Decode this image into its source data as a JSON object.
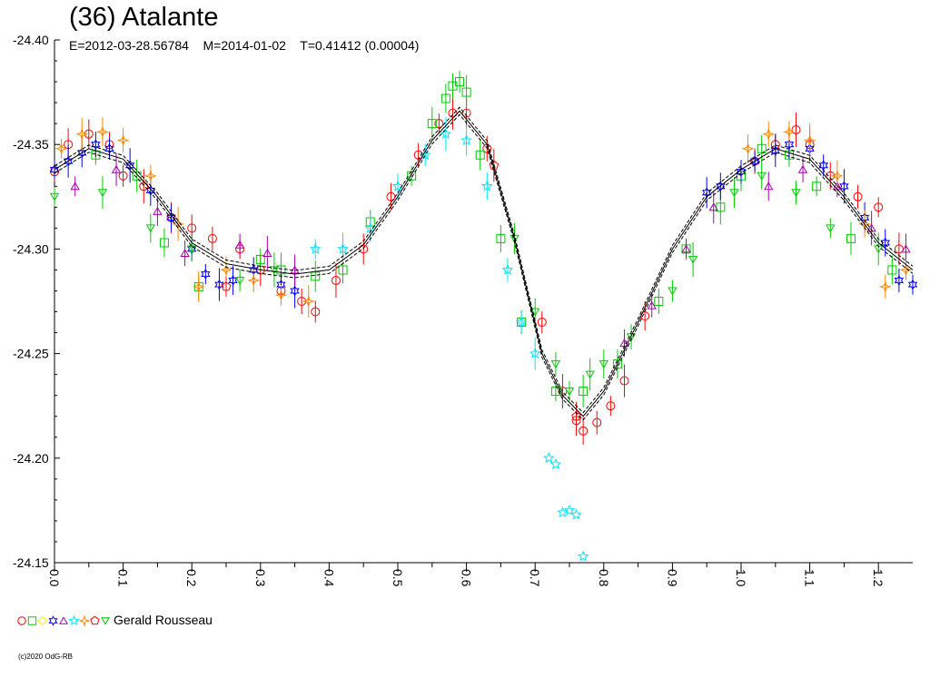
{
  "chart_data": {
    "type": "scatter",
    "title": "(36) Atalante",
    "subtitle": "E=2012-03-28.56784    M=2014-01-02    T=0.41412 (0.00004)",
    "xlabel": "",
    "ylabel": "",
    "xlim": [
      0.0,
      1.25
    ],
    "ylim": [
      -24.4,
      -24.15
    ],
    "y_inverted": true,
    "x_ticks": [
      "0.0",
      "0.1",
      "0.2",
      "0.3",
      "0.4",
      "0.5",
      "0.6",
      "0.7",
      "0.8",
      "0.9",
      "1.0",
      "1.1",
      "1.2"
    ],
    "y_ticks": [
      "-24.40",
      "-24.35",
      "-24.30",
      "-24.25",
      "-24.20",
      "-24.15"
    ],
    "grid": false,
    "legend_position": "bottom-left",
    "legend": {
      "label": "Gerald Rousseau",
      "markers": [
        {
          "shape": "circle",
          "color": "#ff0000"
        },
        {
          "shape": "square",
          "color": "#00cc00"
        },
        {
          "shape": "diamond",
          "color": "#ffee00"
        },
        {
          "shape": "hexstar",
          "color": "#0000ff"
        },
        {
          "shape": "triangle-up",
          "color": "#aa00aa"
        },
        {
          "shape": "star",
          "color": "#00e6ff"
        },
        {
          "shape": "cross",
          "color": "#ff8800"
        },
        {
          "shape": "pentagon",
          "color": "#ff0000"
        },
        {
          "shape": "triangle-down",
          "color": "#00cc00"
        }
      ]
    },
    "fit_curve": {
      "description_points_phase": [
        0.0,
        0.05,
        0.1,
        0.15,
        0.2,
        0.25,
        0.3,
        0.35,
        0.4,
        0.45,
        0.5,
        0.55,
        0.59,
        0.63,
        0.67,
        0.71,
        0.74,
        0.77,
        0.8,
        0.85,
        0.9,
        0.95,
        1.0,
        1.05,
        1.1,
        1.15,
        1.2,
        1.25
      ],
      "mag": [
        -24.338,
        -24.348,
        -24.343,
        -24.325,
        -24.303,
        -24.293,
        -24.29,
        -24.288,
        -24.29,
        -24.302,
        -24.325,
        -24.352,
        -24.366,
        -24.35,
        -24.305,
        -24.25,
        -24.23,
        -24.22,
        -24.232,
        -24.265,
        -24.3,
        -24.325,
        -24.338,
        -24.348,
        -24.343,
        -24.325,
        -24.303,
        -24.29
      ]
    },
    "series": [
      {
        "marker": "circle",
        "color": "#ff0000",
        "x": [
          0.0,
          0.02,
          0.05,
          0.08,
          0.1,
          0.13,
          0.17,
          0.2,
          0.23,
          0.27,
          0.3,
          0.33,
          0.36,
          0.38,
          0.41,
          0.45,
          0.49,
          0.53,
          0.56,
          0.58,
          0.6,
          0.63,
          0.71,
          0.74,
          0.76,
          0.77,
          0.79,
          0.81,
          0.83,
          0.86,
          1.02,
          1.05,
          1.08,
          1.1,
          1.13,
          1.17,
          1.2,
          1.23
        ],
        "y": [
          -24.337,
          -24.35,
          -24.355,
          -24.35,
          -24.335,
          -24.33,
          -24.315,
          -24.31,
          -24.305,
          -24.3,
          -24.29,
          -24.28,
          -24.275,
          -24.27,
          -24.285,
          -24.3,
          -24.325,
          -24.345,
          -24.36,
          -24.365,
          -24.365,
          -24.348,
          -24.265,
          -24.232,
          -24.218,
          -24.213,
          -24.217,
          -24.225,
          -24.237,
          -24.268,
          -24.342,
          -24.35,
          -24.357,
          -24.35,
          -24.335,
          -24.325,
          -24.32,
          -24.3
        ]
      },
      {
        "marker": "square",
        "color": "#00cc00",
        "x": [
          0.06,
          0.12,
          0.16,
          0.21,
          0.3,
          0.33,
          0.38,
          0.42,
          0.46,
          0.52,
          0.55,
          0.57,
          0.58,
          0.59,
          0.6,
          0.62,
          0.65,
          0.68,
          0.73,
          0.77,
          0.82,
          0.88,
          0.92,
          0.97,
          1.0,
          1.03,
          1.07,
          1.11,
          1.16,
          1.22
        ],
        "y": [
          -24.345,
          -24.335,
          -24.303,
          -24.282,
          -24.295,
          -24.29,
          -24.287,
          -24.29,
          -24.313,
          -24.335,
          -24.36,
          -24.372,
          -24.378,
          -24.38,
          -24.375,
          -24.345,
          -24.305,
          -24.265,
          -24.232,
          -24.232,
          -24.245,
          -24.275,
          -24.3,
          -24.32,
          -24.335,
          -24.348,
          -24.345,
          -24.33,
          -24.305,
          -24.29
        ]
      },
      {
        "marker": "hexstar",
        "color": "#0000ff",
        "x": [
          0.0,
          0.02,
          0.04,
          0.06,
          0.08,
          0.11,
          0.14,
          0.17,
          0.2,
          0.22,
          0.24,
          0.26,
          0.29,
          0.33,
          0.35,
          0.95,
          0.97,
          1.0,
          1.02,
          1.05,
          1.07,
          1.1,
          1.12,
          1.15,
          1.18,
          1.21,
          1.23,
          1.25
        ],
        "y": [
          -24.338,
          -24.342,
          -24.346,
          -24.35,
          -24.348,
          -24.34,
          -24.328,
          -24.315,
          -24.3,
          -24.288,
          -24.283,
          -24.285,
          -24.29,
          -24.283,
          -24.28,
          -24.327,
          -24.33,
          -24.337,
          -24.342,
          -24.347,
          -24.35,
          -24.348,
          -24.34,
          -24.33,
          -24.315,
          -24.303,
          -24.285,
          -24.283
        ]
      },
      {
        "marker": "triangle-up",
        "color": "#aa00aa",
        "x": [
          0.03,
          0.09,
          0.15,
          0.19,
          0.27,
          0.31,
          0.35,
          0.83,
          0.87,
          0.92,
          0.96,
          1.04,
          1.09,
          1.14,
          1.19,
          1.24
        ],
        "y": [
          -24.33,
          -24.338,
          -24.318,
          -24.298,
          -24.302,
          -24.298,
          -24.29,
          -24.255,
          -24.273,
          -24.3,
          -24.32,
          -24.33,
          -24.338,
          -24.33,
          -24.31,
          -24.3
        ]
      },
      {
        "marker": "star",
        "color": "#00e6ff",
        "x": [
          0.38,
          0.42,
          0.46,
          0.5,
          0.54,
          0.57,
          0.6,
          0.63,
          0.66,
          0.68,
          0.7,
          0.72,
          0.73,
          0.74,
          0.75,
          0.76,
          0.77
        ],
        "y": [
          -24.3,
          -24.3,
          -24.31,
          -24.33,
          -24.345,
          -24.355,
          -24.352,
          -24.33,
          -24.29,
          -24.265,
          -24.25,
          -24.2,
          -24.197,
          -24.174,
          -24.175,
          -24.173,
          -24.153
        ]
      },
      {
        "marker": "cross",
        "color": "#ff8800",
        "x": [
          0.01,
          0.04,
          0.07,
          0.1,
          0.14,
          0.18,
          0.21,
          0.25,
          0.29,
          0.33,
          0.37,
          1.01,
          1.04,
          1.07,
          1.1,
          1.14,
          1.18,
          1.21,
          1.24
        ],
        "y": [
          -24.348,
          -24.355,
          -24.356,
          -24.352,
          -24.335,
          -24.312,
          -24.282,
          -24.29,
          -24.285,
          -24.278,
          -24.275,
          -24.348,
          -24.355,
          -24.356,
          -24.352,
          -24.335,
          -24.312,
          -24.282,
          -24.29
        ]
      },
      {
        "marker": "pentagon",
        "color": "#ff0000",
        "x": [
          0.25,
          0.64,
          0.76
        ],
        "y": [
          -24.282,
          -24.34,
          -24.22
        ]
      },
      {
        "marker": "triangle-down",
        "color": "#00cc00",
        "x": [
          0.0,
          0.07,
          0.14,
          0.2,
          0.27,
          0.32,
          0.67,
          0.7,
          0.73,
          0.75,
          0.78,
          0.8,
          0.84,
          0.9,
          0.93,
          0.99,
          1.03,
          1.08,
          1.13,
          1.2
        ],
        "y": [
          -24.325,
          -24.327,
          -24.31,
          -24.3,
          -24.285,
          -24.29,
          -24.305,
          -24.27,
          -24.245,
          -24.232,
          -24.24,
          -24.245,
          -24.258,
          -24.28,
          -24.295,
          -24.327,
          -24.335,
          -24.327,
          -24.31,
          -24.3
        ]
      }
    ]
  },
  "copyright": "(c)2020 OdG-RB"
}
